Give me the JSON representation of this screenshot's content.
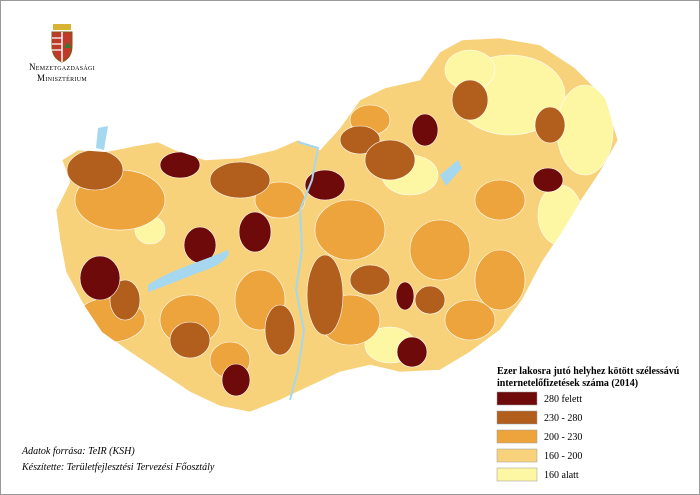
{
  "header": {
    "ministry": [
      "Nemzetgazdasági",
      "Minisztérium"
    ]
  },
  "legend": {
    "title": [
      "Ezer lakosra jutó helyhez kötött szélessávú",
      "internetelőfizetések száma (2014)"
    ],
    "items": [
      {
        "label": "280 felett",
        "color": "#6e0a0a"
      },
      {
        "label": "230 - 280",
        "color": "#b25e1c"
      },
      {
        "label": "200 - 230",
        "color": "#eda43c"
      },
      {
        "label": "160 - 200",
        "color": "#f8d27a"
      },
      {
        "label": "160 alatt",
        "color": "#fdf6a2"
      }
    ]
  },
  "footer": {
    "source": "Adatok forrása: TeIR (KSH)",
    "author": "Készítette: Területfejlesztési Tervezési Főosztály"
  }
}
